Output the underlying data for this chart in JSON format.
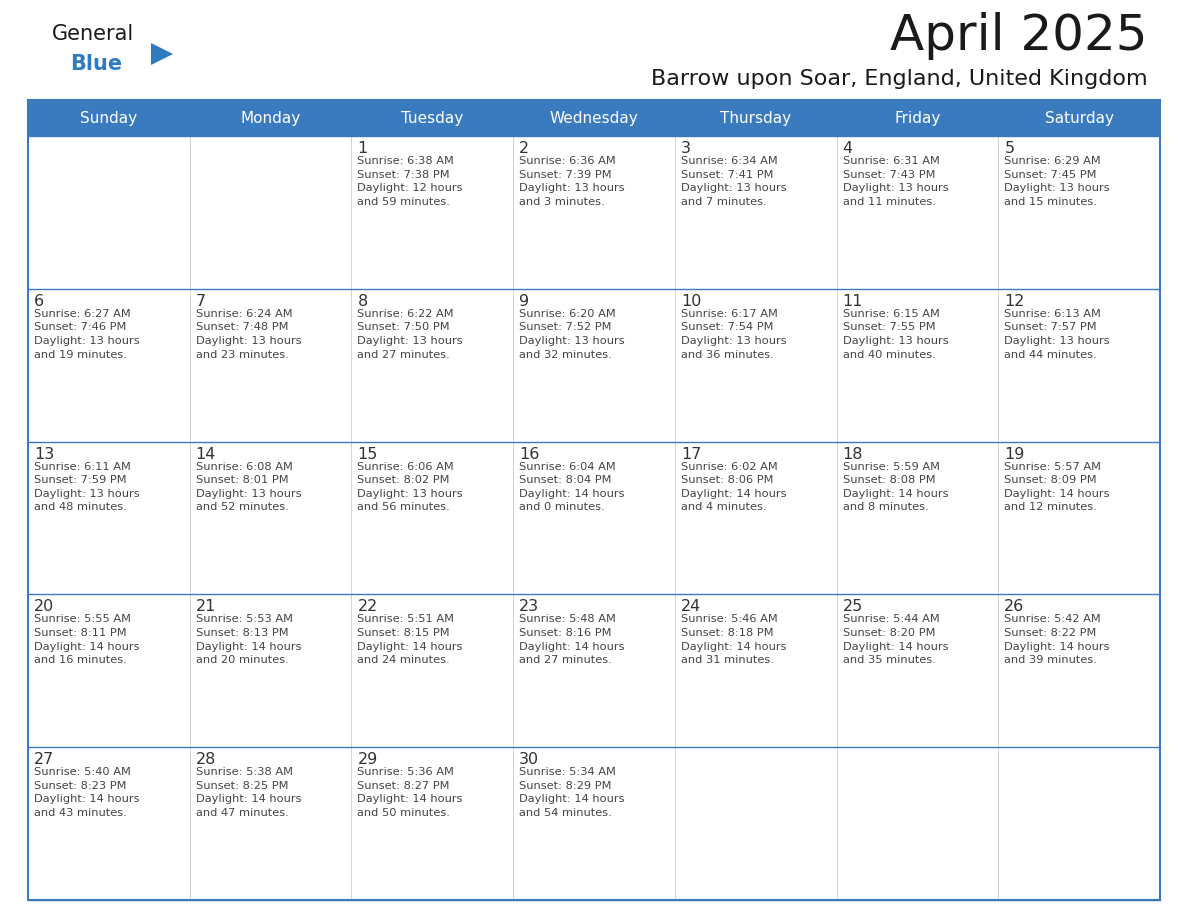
{
  "title": "April 2025",
  "subtitle": "Barrow upon Soar, England, United Kingdom",
  "days_of_week": [
    "Sunday",
    "Monday",
    "Tuesday",
    "Wednesday",
    "Thursday",
    "Friday",
    "Saturday"
  ],
  "header_bg_color": "#3a7bbf",
  "header_text_color": "#ffffff",
  "cell_bg_color": "#ffffff",
  "border_color": "#3a7bbf",
  "row_line_color": "#3a7bbf",
  "col_line_color": "#cccccc",
  "text_color": "#444444",
  "day_num_color": "#333333",
  "title_color": "#1a1a1a",
  "subtitle_color": "#1a1a1a",
  "logo_general_color": "#1a1a1a",
  "logo_blue_color": "#2e7bbf",
  "weeks": [
    [
      {
        "day": null,
        "info": null
      },
      {
        "day": null,
        "info": null
      },
      {
        "day": 1,
        "info": "Sunrise: 6:38 AM\nSunset: 7:38 PM\nDaylight: 12 hours\nand 59 minutes."
      },
      {
        "day": 2,
        "info": "Sunrise: 6:36 AM\nSunset: 7:39 PM\nDaylight: 13 hours\nand 3 minutes."
      },
      {
        "day": 3,
        "info": "Sunrise: 6:34 AM\nSunset: 7:41 PM\nDaylight: 13 hours\nand 7 minutes."
      },
      {
        "day": 4,
        "info": "Sunrise: 6:31 AM\nSunset: 7:43 PM\nDaylight: 13 hours\nand 11 minutes."
      },
      {
        "day": 5,
        "info": "Sunrise: 6:29 AM\nSunset: 7:45 PM\nDaylight: 13 hours\nand 15 minutes."
      }
    ],
    [
      {
        "day": 6,
        "info": "Sunrise: 6:27 AM\nSunset: 7:46 PM\nDaylight: 13 hours\nand 19 minutes."
      },
      {
        "day": 7,
        "info": "Sunrise: 6:24 AM\nSunset: 7:48 PM\nDaylight: 13 hours\nand 23 minutes."
      },
      {
        "day": 8,
        "info": "Sunrise: 6:22 AM\nSunset: 7:50 PM\nDaylight: 13 hours\nand 27 minutes."
      },
      {
        "day": 9,
        "info": "Sunrise: 6:20 AM\nSunset: 7:52 PM\nDaylight: 13 hours\nand 32 minutes."
      },
      {
        "day": 10,
        "info": "Sunrise: 6:17 AM\nSunset: 7:54 PM\nDaylight: 13 hours\nand 36 minutes."
      },
      {
        "day": 11,
        "info": "Sunrise: 6:15 AM\nSunset: 7:55 PM\nDaylight: 13 hours\nand 40 minutes."
      },
      {
        "day": 12,
        "info": "Sunrise: 6:13 AM\nSunset: 7:57 PM\nDaylight: 13 hours\nand 44 minutes."
      }
    ],
    [
      {
        "day": 13,
        "info": "Sunrise: 6:11 AM\nSunset: 7:59 PM\nDaylight: 13 hours\nand 48 minutes."
      },
      {
        "day": 14,
        "info": "Sunrise: 6:08 AM\nSunset: 8:01 PM\nDaylight: 13 hours\nand 52 minutes."
      },
      {
        "day": 15,
        "info": "Sunrise: 6:06 AM\nSunset: 8:02 PM\nDaylight: 13 hours\nand 56 minutes."
      },
      {
        "day": 16,
        "info": "Sunrise: 6:04 AM\nSunset: 8:04 PM\nDaylight: 14 hours\nand 0 minutes."
      },
      {
        "day": 17,
        "info": "Sunrise: 6:02 AM\nSunset: 8:06 PM\nDaylight: 14 hours\nand 4 minutes."
      },
      {
        "day": 18,
        "info": "Sunrise: 5:59 AM\nSunset: 8:08 PM\nDaylight: 14 hours\nand 8 minutes."
      },
      {
        "day": 19,
        "info": "Sunrise: 5:57 AM\nSunset: 8:09 PM\nDaylight: 14 hours\nand 12 minutes."
      }
    ],
    [
      {
        "day": 20,
        "info": "Sunrise: 5:55 AM\nSunset: 8:11 PM\nDaylight: 14 hours\nand 16 minutes."
      },
      {
        "day": 21,
        "info": "Sunrise: 5:53 AM\nSunset: 8:13 PM\nDaylight: 14 hours\nand 20 minutes."
      },
      {
        "day": 22,
        "info": "Sunrise: 5:51 AM\nSunset: 8:15 PM\nDaylight: 14 hours\nand 24 minutes."
      },
      {
        "day": 23,
        "info": "Sunrise: 5:48 AM\nSunset: 8:16 PM\nDaylight: 14 hours\nand 27 minutes."
      },
      {
        "day": 24,
        "info": "Sunrise: 5:46 AM\nSunset: 8:18 PM\nDaylight: 14 hours\nand 31 minutes."
      },
      {
        "day": 25,
        "info": "Sunrise: 5:44 AM\nSunset: 8:20 PM\nDaylight: 14 hours\nand 35 minutes."
      },
      {
        "day": 26,
        "info": "Sunrise: 5:42 AM\nSunset: 8:22 PM\nDaylight: 14 hours\nand 39 minutes."
      }
    ],
    [
      {
        "day": 27,
        "info": "Sunrise: 5:40 AM\nSunset: 8:23 PM\nDaylight: 14 hours\nand 43 minutes."
      },
      {
        "day": 28,
        "info": "Sunrise: 5:38 AM\nSunset: 8:25 PM\nDaylight: 14 hours\nand 47 minutes."
      },
      {
        "day": 29,
        "info": "Sunrise: 5:36 AM\nSunset: 8:27 PM\nDaylight: 14 hours\nand 50 minutes."
      },
      {
        "day": 30,
        "info": "Sunrise: 5:34 AM\nSunset: 8:29 PM\nDaylight: 14 hours\nand 54 minutes."
      },
      {
        "day": null,
        "info": null
      },
      {
        "day": null,
        "info": null
      },
      {
        "day": null,
        "info": null
      }
    ]
  ]
}
